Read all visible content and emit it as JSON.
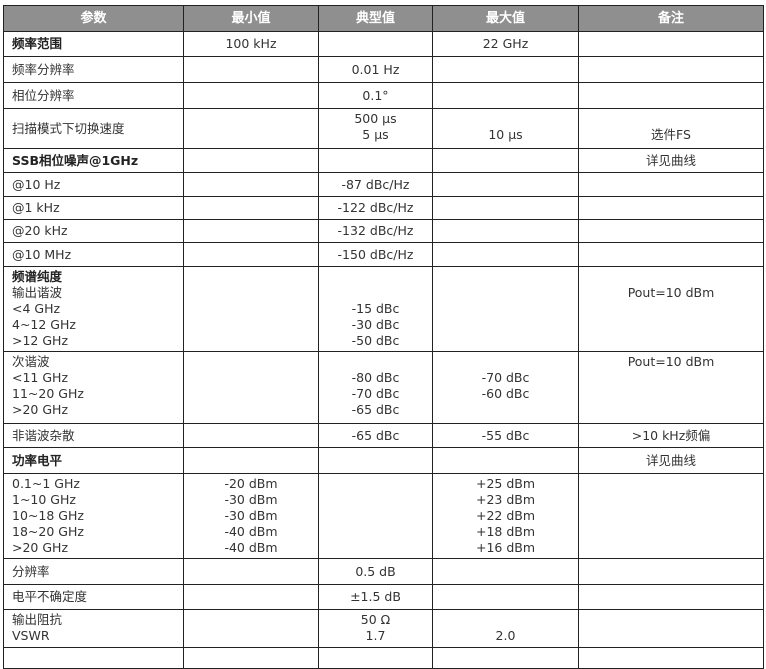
{
  "header": [
    "参数",
    "最小值",
    "典型值",
    "最大值",
    "备注"
  ],
  "rows": [
    {
      "cells": [
        {
          "lines": [
            "频率范围"
          ],
          "bold": true
        },
        {
          "lines": [
            "100 kHz"
          ]
        },
        {
          "lines": [
            ""
          ]
        },
        {
          "lines": [
            "22 GHz"
          ]
        },
        {
          "lines": [
            ""
          ]
        }
      ]
    },
    {
      "cells": [
        {
          "lines": [
            "频率分辨率"
          ]
        },
        {
          "lines": [
            ""
          ]
        },
        {
          "lines": [
            "0.01 Hz"
          ]
        },
        {
          "lines": [
            ""
          ]
        },
        {
          "lines": [
            ""
          ]
        }
      ]
    },
    {
      "cells": [
        {
          "lines": [
            "相位分辨率"
          ]
        },
        {
          "lines": [
            ""
          ]
        },
        {
          "lines": [
            "0.1°"
          ]
        },
        {
          "lines": [
            ""
          ]
        },
        {
          "lines": [
            ""
          ]
        }
      ]
    },
    {
      "cells": [
        {
          "lines": [
            "扫描模式下切换速度"
          ]
        },
        {
          "lines": [
            ""
          ]
        },
        {
          "lines": [
            "500 μs",
            "5 μs"
          ]
        },
        {
          "lines": [
            "",
            "10 μs"
          ]
        },
        {
          "lines": [
            "",
            "选件FS"
          ]
        }
      ]
    },
    {
      "cells": [
        {
          "lines": [
            "SSB相位噪声@1GHz"
          ],
          "bold": true
        },
        {
          "lines": [
            ""
          ]
        },
        {
          "lines": [
            ""
          ]
        },
        {
          "lines": [
            ""
          ]
        },
        {
          "lines": [
            "详见曲线"
          ]
        }
      ]
    },
    {
      "cells": [
        {
          "lines": [
            "@10 Hz"
          ]
        },
        {
          "lines": [
            ""
          ]
        },
        {
          "lines": [
            "-87 dBc/Hz"
          ]
        },
        {
          "lines": [
            ""
          ]
        },
        {
          "lines": [
            ""
          ]
        }
      ]
    },
    {
      "cells": [
        {
          "lines": [
            "@1 kHz"
          ]
        },
        {
          "lines": [
            ""
          ]
        },
        {
          "lines": [
            "-122 dBc/Hz"
          ]
        },
        {
          "lines": [
            ""
          ]
        },
        {
          "lines": [
            ""
          ]
        }
      ]
    },
    {
      "cells": [
        {
          "lines": [
            "@20 kHz"
          ]
        },
        {
          "lines": [
            ""
          ]
        },
        {
          "lines": [
            "-132 dBc/Hz"
          ]
        },
        {
          "lines": [
            ""
          ]
        },
        {
          "lines": [
            ""
          ]
        }
      ]
    },
    {
      "cells": [
        {
          "lines": [
            "@10 MHz"
          ]
        },
        {
          "lines": [
            ""
          ]
        },
        {
          "lines": [
            "-150 dBc/Hz"
          ]
        },
        {
          "lines": [
            ""
          ]
        },
        {
          "lines": [
            ""
          ]
        }
      ]
    },
    {
      "cells": [
        {
          "lines": [
            "频谱纯度",
            "输出谐波",
            "<4 GHz",
            "4~12 GHz",
            ">12 GHz"
          ],
          "bold_first": true
        },
        {
          "lines": [
            ""
          ]
        },
        {
          "lines": [
            "",
            "",
            "-15 dBc",
            "-30 dBc",
            "-50 dBc"
          ]
        },
        {
          "lines": [
            ""
          ]
        },
        {
          "lines": [
            "",
            "Pout=10 dBm"
          ]
        }
      ]
    },
    {
      "cells": [
        {
          "lines": [
            "次谐波",
            "<11 GHz",
            "11~20 GHz",
            ">20 GHz"
          ]
        },
        {
          "lines": [
            ""
          ]
        },
        {
          "lines": [
            "",
            "-80 dBc",
            "-70 dBc",
            "-65 dBc"
          ]
        },
        {
          "lines": [
            "",
            "-70 dBc",
            "-60 dBc"
          ]
        },
        {
          "lines": [
            "Pout=10 dBm",
            ""
          ]
        }
      ]
    },
    {
      "cells": [
        {
          "lines": [
            "非谐波杂散"
          ]
        },
        {
          "lines": [
            ""
          ]
        },
        {
          "lines": [
            "-65 dBc"
          ]
        },
        {
          "lines": [
            "-55 dBc"
          ]
        },
        {
          "lines": [
            ">10 kHz频偏"
          ]
        }
      ]
    },
    {
      "cells": [
        {
          "lines": [
            "功率电平"
          ],
          "bold": true
        },
        {
          "lines": [
            ""
          ]
        },
        {
          "lines": [
            ""
          ]
        },
        {
          "lines": [
            ""
          ]
        },
        {
          "lines": [
            "详见曲线"
          ]
        }
      ]
    },
    {
      "cells": [
        {
          "lines": [
            "0.1~1 GHz",
            "1~10 GHz",
            "10~18 GHz",
            "18~20 GHz",
            ">20 GHz"
          ]
        },
        {
          "lines": [
            "-20 dBm",
            "-30 dBm",
            "-30 dBm",
            "-40 dBm",
            "-40 dBm"
          ]
        },
        {
          "lines": [
            ""
          ]
        },
        {
          "lines": [
            "+25 dBm",
            "+23 dBm",
            "+22 dBm",
            "+18 dBm",
            "+16 dBm"
          ]
        },
        {
          "lines": [
            ""
          ]
        }
      ]
    },
    {
      "cells": [
        {
          "lines": [
            "分辨率"
          ]
        },
        {
          "lines": [
            ""
          ]
        },
        {
          "lines": [
            "0.5 dB"
          ]
        },
        {
          "lines": [
            ""
          ]
        },
        {
          "lines": [
            ""
          ]
        }
      ]
    },
    {
      "cells": [
        {
          "lines": [
            "电平不确定度"
          ]
        },
        {
          "lines": [
            ""
          ]
        },
        {
          "lines": [
            "±1.5 dB"
          ]
        },
        {
          "lines": [
            ""
          ]
        },
        {
          "lines": [
            ""
          ]
        }
      ]
    },
    {
      "cells": [
        {
          "lines": [
            "输出阻抗",
            "VSWR"
          ]
        },
        {
          "lines": [
            ""
          ]
        },
        {
          "lines": [
            "50 Ω",
            "1.7"
          ]
        },
        {
          "lines": [
            "",
            "2.0"
          ]
        },
        {
          "lines": [
            ""
          ]
        }
      ]
    },
    {
      "cells": [
        {
          "lines": [
            ""
          ]
        },
        {
          "lines": [
            ""
          ]
        },
        {
          "lines": [
            ""
          ]
        },
        {
          "lines": [
            ""
          ]
        },
        {
          "lines": [
            ""
          ]
        }
      ]
    }
  ]
}
